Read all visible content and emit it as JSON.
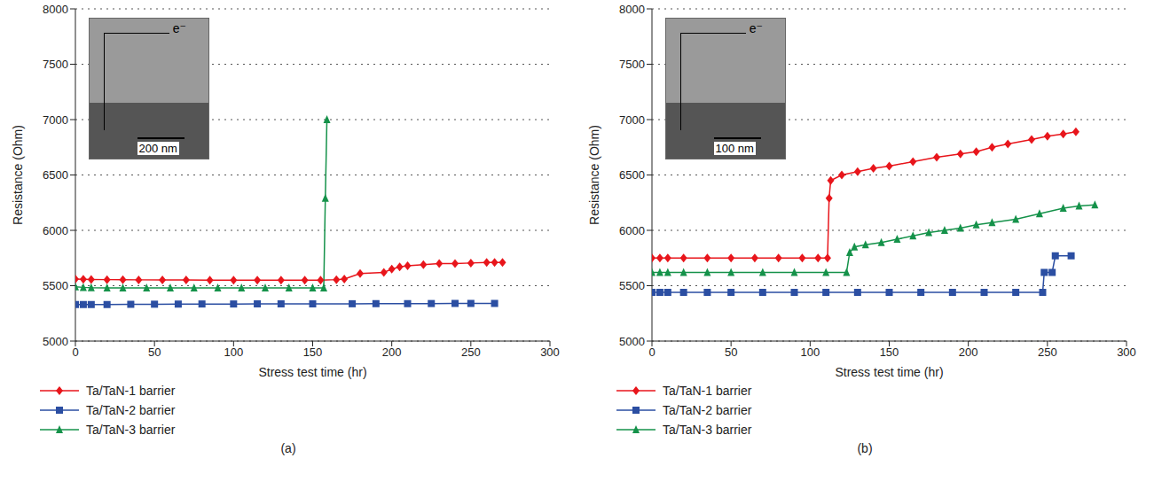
{
  "chart_data": [
    {
      "type": "line",
      "panel_label": "(a)",
      "x_label": "Stress test time (hr)",
      "y_label": "Resistance (Ohm)",
      "xlim": [
        0,
        300
      ],
      "xticks": [
        0,
        50,
        100,
        150,
        200,
        250,
        300
      ],
      "ylim": [
        5000,
        8000
      ],
      "yticks": [
        5000,
        5500,
        6000,
        6500,
        7000,
        7500,
        8000
      ],
      "grid": true,
      "legend": "bottom",
      "inset": {
        "electron_label": "e⁻",
        "scale_bar": "200 nm"
      },
      "series": [
        {
          "name": "Ta/TaN-1 barrier",
          "color": "#e8151b",
          "marker": "diamond",
          "x": [
            0,
            5,
            10,
            20,
            30,
            40,
            55,
            70,
            85,
            100,
            115,
            130,
            145,
            155,
            165,
            170,
            180,
            195,
            200,
            205,
            210,
            220,
            230,
            240,
            250,
            260,
            265,
            270
          ],
          "values": [
            5560,
            5558,
            5556,
            5555,
            5554,
            5553,
            5552,
            5552,
            5551,
            5551,
            5550,
            5550,
            5550,
            5550,
            5555,
            5560,
            5610,
            5620,
            5650,
            5670,
            5680,
            5690,
            5700,
            5700,
            5705,
            5710,
            5710,
            5710
          ]
        },
        {
          "name": "Ta/TaN-2 barrier",
          "color": "#2b4ea2",
          "marker": "square",
          "x": [
            0,
            5,
            10,
            20,
            35,
            50,
            65,
            80,
            100,
            115,
            130,
            150,
            175,
            190,
            210,
            225,
            240,
            250,
            265
          ],
          "values": [
            5330,
            5330,
            5330,
            5330,
            5332,
            5333,
            5334,
            5335,
            5335,
            5336,
            5336,
            5336,
            5337,
            5338,
            5338,
            5339,
            5340,
            5340,
            5340
          ]
        },
        {
          "name": "Ta/TaN-3 barrier",
          "color": "#15924a",
          "marker": "triangle",
          "x": [
            0,
            5,
            10,
            20,
            30,
            45,
            60,
            75,
            90,
            105,
            120,
            135,
            150,
            157,
            158,
            159
          ],
          "values": [
            5490,
            5485,
            5482,
            5480,
            5480,
            5480,
            5480,
            5480,
            5480,
            5480,
            5480,
            5480,
            5480,
            5480,
            6290,
            7000
          ]
        }
      ]
    },
    {
      "type": "line",
      "panel_label": "(b)",
      "x_label": "Stress test time (hr)",
      "y_label": "Resistance (Ohm)",
      "xlim": [
        0,
        300
      ],
      "xticks": [
        0,
        50,
        100,
        150,
        200,
        250,
        300
      ],
      "ylim": [
        5000,
        8000
      ],
      "yticks": [
        5000,
        5500,
        6000,
        6500,
        7000,
        7500,
        8000
      ],
      "grid": true,
      "legend": "bottom",
      "inset": {
        "electron_label": "e⁻",
        "scale_bar": "100 nm"
      },
      "series": [
        {
          "name": "Ta/TaN-1 barrier",
          "color": "#e8151b",
          "marker": "diamond",
          "x": [
            0,
            5,
            10,
            20,
            35,
            50,
            65,
            80,
            95,
            105,
            111,
            112,
            113,
            120,
            130,
            140,
            150,
            165,
            180,
            195,
            205,
            215,
            225,
            240,
            250,
            260,
            268
          ],
          "values": [
            5750,
            5750,
            5750,
            5750,
            5750,
            5750,
            5750,
            5750,
            5750,
            5750,
            5750,
            6290,
            6450,
            6500,
            6530,
            6560,
            6580,
            6620,
            6660,
            6690,
            6710,
            6750,
            6780,
            6820,
            6850,
            6870,
            6890
          ]
        },
        {
          "name": "Ta/TaN-2 barrier",
          "color": "#2b4ea2",
          "marker": "square",
          "x": [
            0,
            5,
            10,
            20,
            35,
            50,
            70,
            90,
            110,
            130,
            150,
            170,
            190,
            210,
            230,
            247,
            248,
            253,
            255,
            265
          ],
          "values": [
            5440,
            5440,
            5440,
            5440,
            5440,
            5440,
            5440,
            5440,
            5440,
            5440,
            5440,
            5440,
            5440,
            5440,
            5440,
            5440,
            5620,
            5620,
            5770,
            5770
          ]
        },
        {
          "name": "Ta/TaN-3 barrier",
          "color": "#15924a",
          "marker": "triangle",
          "x": [
            0,
            5,
            10,
            20,
            35,
            50,
            70,
            90,
            110,
            123,
            125,
            128,
            135,
            145,
            155,
            165,
            175,
            185,
            195,
            205,
            215,
            230,
            245,
            260,
            270,
            280
          ],
          "values": [
            5620,
            5620,
            5620,
            5620,
            5620,
            5620,
            5620,
            5620,
            5620,
            5620,
            5800,
            5850,
            5870,
            5890,
            5920,
            5950,
            5980,
            6000,
            6020,
            6050,
            6070,
            6100,
            6150,
            6200,
            6220,
            6230
          ]
        }
      ]
    }
  ]
}
